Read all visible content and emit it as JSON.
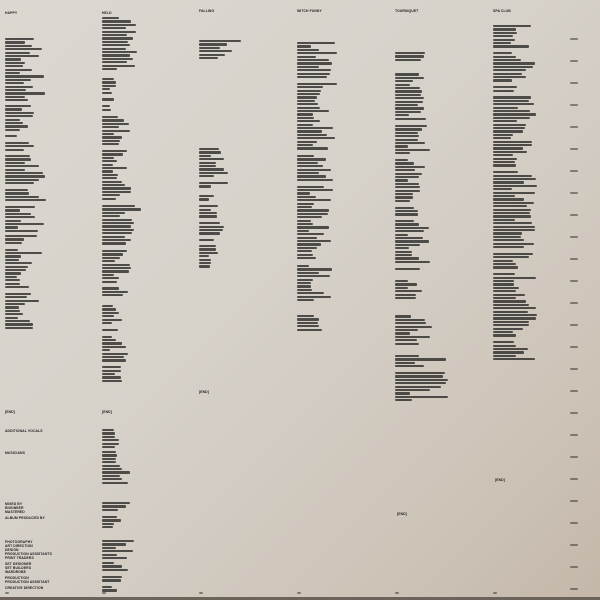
{
  "columns": [
    {
      "header": "HAPPY"
    },
    {
      "header": "HELD"
    },
    {
      "header": "FALLING"
    },
    {
      "header": "WITCH FUNNY"
    },
    {
      "header": "TOURNIQUET"
    },
    {
      "header": "SPA CLUB"
    }
  ],
  "end_marker": "[END]",
  "credits": {
    "labels": [
      "ADDITIONAL VOCALS",
      "MUSICIANS",
      "MIXED BY",
      "ENGINEER",
      "MASTERED",
      "ALBUM PRODUCED BY",
      "PHOTOGRAPHY",
      "ART DIRECTION",
      "DESIGN",
      "PRODUCTION ASSISTANTS",
      "PRINT TRADERS",
      "SET DESIGNER",
      "SET BUILDERS",
      "WARDROBE",
      "PRODUCTION",
      "PRODUCTION ASSISTANT",
      "CREATIVE DIRECTION"
    ]
  },
  "colors": {
    "paper": "#d8d3cb",
    "ink": "#222222"
  }
}
